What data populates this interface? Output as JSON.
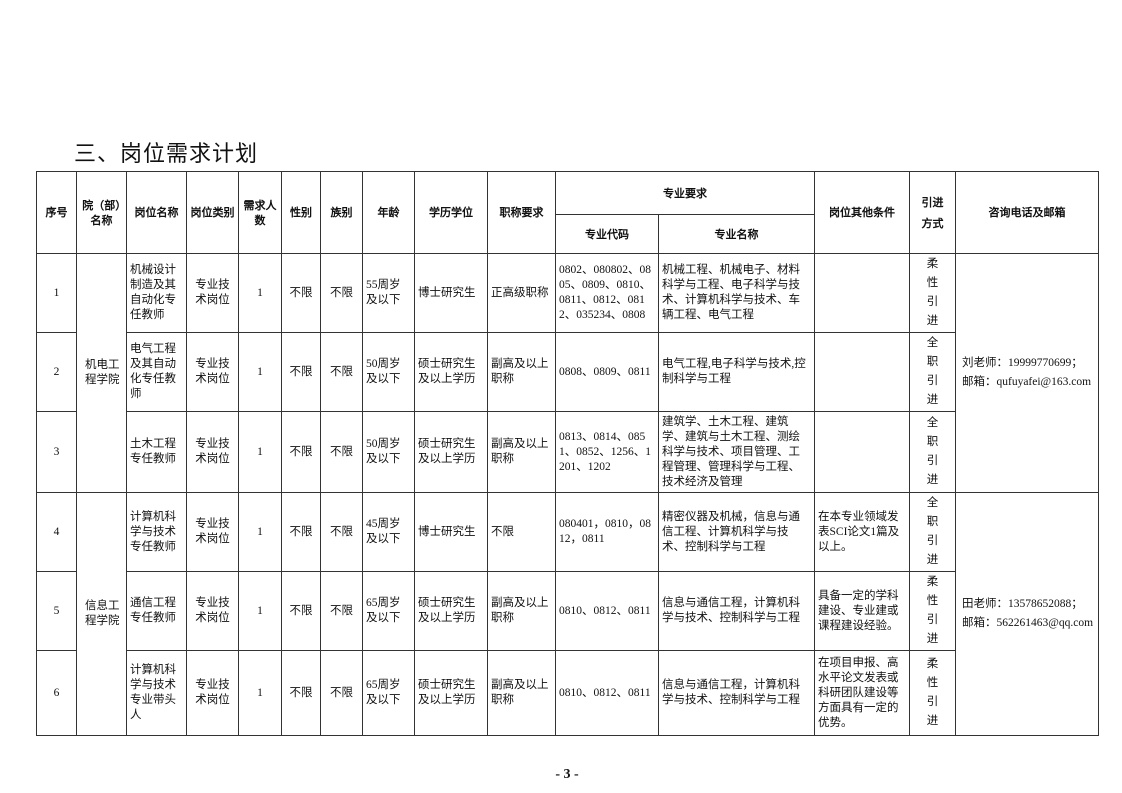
{
  "title": "三、岗位需求计划",
  "headers": {
    "no": "序号",
    "dept": "院（部）名称",
    "post": "岗位名称",
    "type": "岗位类别",
    "count": "需求人数",
    "gender": "性别",
    "ethnicity": "族别",
    "age": "年龄",
    "edu": "学历学位",
    "rank": "职称要求",
    "major_req": "专业要求",
    "codes": "专业代码",
    "majors": "专业名称",
    "other": "岗位其他条件",
    "method": "引进方式",
    "contact": "咨询电话及邮箱"
  },
  "groups": [
    {
      "dept": "机电工程学院",
      "contact_phone": "刘老师：19999770699；",
      "contact_email": "邮箱：qufuyafei@163.com"
    },
    {
      "dept": "信息工程学院",
      "contact_phone": "田老师：13578652088；",
      "contact_email": "邮箱：562261463@qq.com"
    }
  ],
  "rows": [
    {
      "no": "1",
      "post": "机械设计制造及其自动化专任教师",
      "type": "专业技术岗位",
      "count": "1",
      "gender": "不限",
      "ethnicity": "不限",
      "age": "55周岁及以下",
      "edu": "博士研究生",
      "rank": "正高级职称",
      "codes": "0802、080802、0805、0809、0810、0811、0812、0812、035234、0808",
      "majors": "机械工程、机械电子、材料科学与工程、电子科学与技术、计算机科学与技术、车辆工程、电气工程",
      "other": "",
      "method": "柔性引进"
    },
    {
      "no": "2",
      "post": "电气工程及其自动化专任教师",
      "type": "专业技术岗位",
      "count": "1",
      "gender": "不限",
      "ethnicity": "不限",
      "age": "50周岁及以下",
      "edu": "硕士研究生及以上学历",
      "rank": "副高及以上职称",
      "codes": "0808、0809、0811",
      "majors": "电气工程,电子科学与技术,控制科学与工程",
      "other": "",
      "method": "全职引进"
    },
    {
      "no": "3",
      "post": "土木工程专任教师",
      "type": "专业技术岗位",
      "count": "1",
      "gender": "不限",
      "ethnicity": "不限",
      "age": "50周岁及以下",
      "edu": "硕士研究生及以上学历",
      "rank": "副高及以上职称",
      "codes": "0813、0814、0851、0852、1256、1201、1202",
      "majors": "建筑学、土木工程、建筑学、建筑与土木工程、测绘科学与技术、项目管理、工程管理、管理科学与工程、技术经济及管理",
      "other": "",
      "method": "全职引进"
    },
    {
      "no": "4",
      "post": "计算机科学与技术专任教师",
      "type": "专业技术岗位",
      "count": "1",
      "gender": "不限",
      "ethnicity": "不限",
      "age": "45周岁及以下",
      "edu": "博士研究生",
      "rank": "不限",
      "codes": "080401，0810，0812，0811",
      "majors": "精密仪器及机械，信息与通信工程、计算机科学与技术、控制科学与工程",
      "other": "在本专业领域发表SCI论文1篇及以上。",
      "method": "全职引进"
    },
    {
      "no": "5",
      "post": "通信工程专任教师",
      "type": "专业技术岗位",
      "count": "1",
      "gender": "不限",
      "ethnicity": "不限",
      "age": "65周岁及以下",
      "edu": "硕士研究生及以上学历",
      "rank": "副高及以上职称",
      "codes": "0810、0812、0811",
      "majors": "信息与通信工程，计算机科学与技术、控制科学与工程",
      "other": "具备一定的学科建设、专业建或课程建设经验。",
      "method": "柔性引进"
    },
    {
      "no": "6",
      "post": "计算机科学与技术专业带头人",
      "type": "专业技术岗位",
      "count": "1",
      "gender": "不限",
      "ethnicity": "不限",
      "age": "65周岁及以下",
      "edu": "硕士研究生及以上学历",
      "rank": "副高及以上职称",
      "codes": "0810、0812、0811",
      "majors": "信息与通信工程，计算机科学与技术、控制科学与工程",
      "other": "在项目申报、高水平论文发表或科研团队建设等方面具有一定的优势。",
      "method": "柔性引进"
    }
  ],
  "page_number": "- 3 -"
}
